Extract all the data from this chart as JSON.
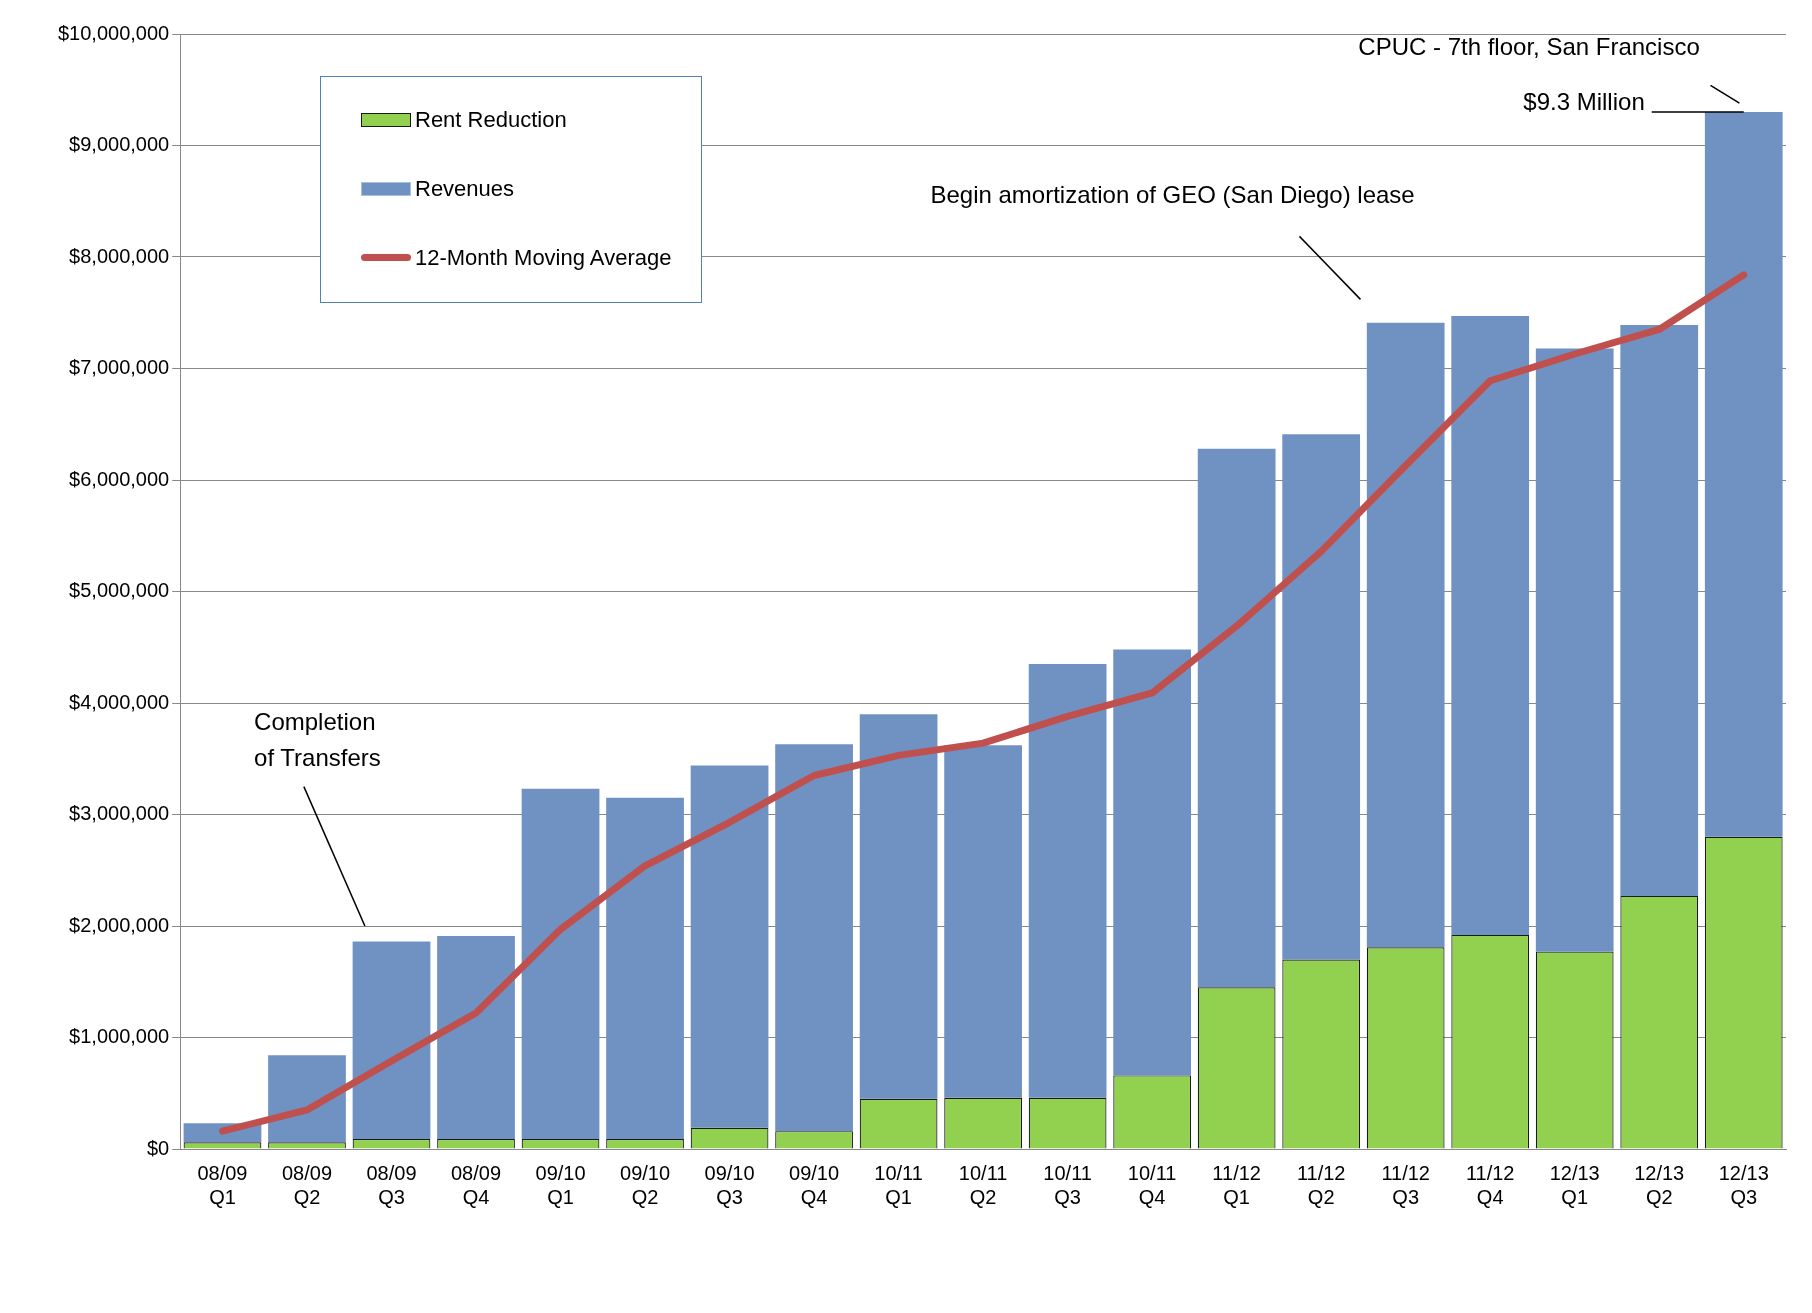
{
  "chart_data": {
    "type": "bar",
    "categories": [
      "08/09 Q1",
      "08/09 Q2",
      "08/09 Q3",
      "08/09 Q4",
      "09/10 Q1",
      "09/10 Q2",
      "09/10 Q3",
      "09/10 Q4",
      "10/11 Q1",
      "10/11 Q2",
      "10/11 Q3",
      "10/11 Q4",
      "11/12 Q1",
      "11/12 Q2",
      "11/12 Q3",
      "11/12 Q4",
      "12/13 Q1",
      "12/13 Q2",
      "12/13 Q3"
    ],
    "series": [
      {
        "name": "Rent Reduction",
        "color": "#92d050",
        "values": [
          60000,
          60000,
          90000,
          90000,
          90000,
          90000,
          190000,
          160000,
          450000,
          460000,
          460000,
          660000,
          1450000,
          1700000,
          1810000,
          1920000,
          1770000,
          2270000,
          2800000
        ]
      },
      {
        "name": "Revenues",
        "color": "#7092c2",
        "values": [
          170000,
          780000,
          1770000,
          1820000,
          3140000,
          3060000,
          3250000,
          3470000,
          3450000,
          3160000,
          3890000,
          3820000,
          4830000,
          4710000,
          5600000,
          5550000,
          5410000,
          5120000,
          6500000
        ]
      },
      {
        "name": "12-Month Moving Average",
        "type": "line",
        "color": "#c0504d",
        "values": [
          160000,
          350000,
          790000,
          1220000,
          1970000,
          2540000,
          2930000,
          3350000,
          3530000,
          3640000,
          3880000,
          4090000,
          4690000,
          5360000,
          6130000,
          6890000,
          7130000,
          7350000,
          7840000
        ]
      }
    ],
    "ylim": [
      0,
      10000000
    ],
    "yticks": [
      {
        "value": 0,
        "label": "$0"
      },
      {
        "value": 1000000,
        "label": "$1,000,000"
      },
      {
        "value": 2000000,
        "label": "$2,000,000"
      },
      {
        "value": 3000000,
        "label": "$3,000,000"
      },
      {
        "value": 4000000,
        "label": "$4,000,000"
      },
      {
        "value": 5000000,
        "label": "$5,000,000"
      },
      {
        "value": 6000000,
        "label": "$6,000,000"
      },
      {
        "value": 7000000,
        "label": "$7,000,000"
      },
      {
        "value": 8000000,
        "label": "$8,000,000"
      },
      {
        "value": 9000000,
        "label": "$9,000,000"
      },
      {
        "value": 10000000,
        "label": "$10,000,000"
      }
    ],
    "stacked": true,
    "grid": "y",
    "legend": "top left",
    "marker": "none",
    "annotations": [
      "CPUC - 7th floor, San Francisco",
      {
        "text": "$9.3 Million",
        "x": "12/13 Q3",
        "y": 9300000
      },
      "Begin amortization of GEO (San Diego) lease",
      "Completion of Transfers"
    ]
  }
}
